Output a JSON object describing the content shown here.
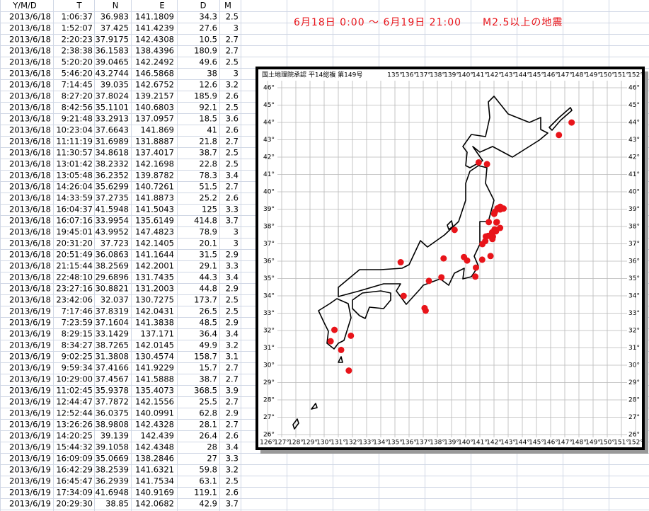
{
  "table": {
    "header": [
      "Y/M/D",
      "T",
      "N",
      "E",
      "D",
      "M"
    ],
    "rows": [
      [
        "2013/6/18",
        "1:06:37",
        36.983,
        141.1809,
        34.3,
        2.5
      ],
      [
        "2013/6/18",
        "1:52:07",
        37.425,
        141.4239,
        27.6,
        3
      ],
      [
        "2013/6/18",
        "2:20:23",
        37.9175,
        142.4308,
        10.5,
        2.7
      ],
      [
        "2013/6/18",
        "2:38:38",
        36.1583,
        138.4396,
        180.9,
        2.7
      ],
      [
        "2013/6/18",
        "5:20:20",
        39.0465,
        142.2492,
        49.6,
        2.5
      ],
      [
        "2013/6/18",
        "5:46:20",
        43.2744,
        146.5868,
        38,
        3
      ],
      [
        "2013/6/18",
        "7:14:45",
        39.035,
        142.6752,
        12.6,
        3.2
      ],
      [
        "2013/6/18",
        "8:27:20",
        37.8024,
        139.2157,
        185.9,
        2.6
      ],
      [
        "2013/6/18",
        "8:42:56",
        35.1101,
        140.6803,
        92.1,
        2.5
      ],
      [
        "2013/6/18",
        "9:21:48",
        33.2913,
        137.0957,
        18.5,
        3.6
      ],
      [
        "2013/6/18",
        "10:23:04",
        37.6643,
        141.869,
        41,
        2.6
      ],
      [
        "2013/6/18",
        "11:11:19",
        31.6989,
        131.8887,
        21.8,
        2.7
      ],
      [
        "2013/6/18",
        "11:30:57",
        34.8618,
        137.4017,
        38.7,
        2.5
      ],
      [
        "2013/6/18",
        "13:01:42",
        38.2332,
        142.1698,
        22.8,
        2.5
      ],
      [
        "2013/6/18",
        "13:05:48",
        36.2352,
        139.8782,
        78.3,
        3.4
      ],
      [
        "2013/6/18",
        "14:26:04",
        35.6299,
        140.7261,
        51.5,
        2.7
      ],
      [
        "2013/6/18",
        "14:33:59",
        37.2735,
        141.8873,
        25.2,
        2.6
      ],
      [
        "2013/6/18",
        "16:04:37",
        41.5948,
        141.5043,
        125,
        3.3
      ],
      [
        "2013/6/18",
        "16:07:16",
        33.9954,
        135.6149,
        414.8,
        3.7
      ],
      [
        "2013/6/18",
        "19:45:01",
        43.9952,
        147.4823,
        78.9,
        3
      ],
      [
        "2013/6/18",
        "20:31:20",
        37.723,
        142.1405,
        20.1,
        3
      ],
      [
        "2013/6/18",
        "20:51:49",
        36.0863,
        141.1644,
        31.5,
        2.9
      ],
      [
        "2013/6/18",
        "21:15:44",
        38.2569,
        142.2001,
        29.1,
        3.3
      ],
      [
        "2013/6/18",
        "22:48:10",
        29.6896,
        131.7435,
        44.3,
        3.4
      ],
      [
        "2013/6/18",
        "23:27:16",
        30.8821,
        131.2003,
        44.8,
        2.9
      ],
      [
        "2013/6/18",
        "23:42:06",
        32.037,
        130.7275,
        173.7,
        2.5
      ],
      [
        "2013/6/19",
        "7:17:46",
        37.8319,
        142.0431,
        26.5,
        2.5
      ],
      [
        "2013/6/19",
        "7:23:59",
        37.1604,
        141.3838,
        48.5,
        2.9
      ],
      [
        "2013/6/19",
        "8:29:15",
        33.1429,
        137.171,
        36.4,
        3.4
      ],
      [
        "2013/6/19",
        "8:34:27",
        38.7265,
        142.0145,
        49.9,
        3.2
      ],
      [
        "2013/6/19",
        "9:02:25",
        31.3808,
        130.4574,
        158.7,
        3.1
      ],
      [
        "2013/6/19",
        "9:59:34",
        37.4166,
        141.9229,
        15.7,
        2.7
      ],
      [
        "2013/6/19",
        "10:29:00",
        37.4567,
        141.5888,
        38.7,
        2.7
      ],
      [
        "2013/6/19",
        "11:02:45",
        35.9378,
        135.4073,
        368.5,
        3.9
      ],
      [
        "2013/6/19",
        "12:44:47",
        37.7872,
        142.1556,
        25.5,
        2.7
      ],
      [
        "2013/6/19",
        "12:52:44",
        36.0375,
        140.0991,
        62.8,
        2.9
      ],
      [
        "2013/6/19",
        "13:26:26",
        38.9808,
        142.4328,
        28.1,
        2.7
      ],
      [
        "2013/6/19",
        "14:20:25",
        39.139,
        142.439,
        26.4,
        2.6
      ],
      [
        "2013/6/19",
        "15:44:32",
        39.1058,
        142.4348,
        28,
        3.4
      ],
      [
        "2013/6/19",
        "16:09:09",
        35.0669,
        138.2846,
        27,
        3.3
      ],
      [
        "2013/6/19",
        "16:42:29",
        38.2539,
        141.6321,
        59.8,
        3.2
      ],
      [
        "2013/6/19",
        "16:45:47",
        36.2939,
        141.7534,
        63.1,
        2.5
      ],
      [
        "2013/6/19",
        "17:34:09",
        41.6948,
        140.9169,
        119.1,
        2.6
      ],
      [
        "2013/6/19",
        "20:29:30",
        38.85,
        142.0682,
        42.9,
        3.7
      ]
    ]
  },
  "map": {
    "title": "6月18日 0:00 ～ 6月19日 21:00　　M2.5以上の地震",
    "credit": "国土地理院承認 平14総複 第149号",
    "marker_color": "#e8141a",
    "xticks": [
      {
        "value": 126,
        "label": "126°"
      },
      {
        "value": 127,
        "label": "127°"
      },
      {
        "value": 128,
        "label": "128°"
      },
      {
        "value": 129,
        "label": "129°"
      },
      {
        "value": 130,
        "label": "130°"
      },
      {
        "value": 131,
        "label": "131°"
      },
      {
        "value": 132,
        "label": "132°"
      },
      {
        "value": 133,
        "label": "133°"
      },
      {
        "value": 134,
        "label": "134°"
      },
      {
        "value": 135,
        "label": "135°"
      },
      {
        "value": 136,
        "label": "136°"
      },
      {
        "value": 137,
        "label": "137°"
      },
      {
        "value": 138,
        "label": "138°"
      },
      {
        "value": 139,
        "label": "139°"
      },
      {
        "value": 140,
        "label": "140°"
      },
      {
        "value": 141,
        "label": "141°"
      },
      {
        "value": 142,
        "label": "142°"
      },
      {
        "value": 143,
        "label": "143°"
      },
      {
        "value": 144,
        "label": "144°"
      },
      {
        "value": 145,
        "label": "145°"
      },
      {
        "value": 146,
        "label": "146°"
      },
      {
        "value": 147,
        "label": "147°"
      },
      {
        "value": 148,
        "label": "148°"
      },
      {
        "value": 149,
        "label": "149°"
      },
      {
        "value": 150,
        "label": "150°"
      },
      {
        "value": 151,
        "label": "151°"
      },
      {
        "value": 152,
        "label": "152°"
      }
    ],
    "yticks": [
      {
        "value": 26,
        "label": "26°"
      },
      {
        "value": 27,
        "label": "27°"
      },
      {
        "value": 28,
        "label": "28°"
      },
      {
        "value": 29,
        "label": "29°"
      },
      {
        "value": 30,
        "label": "30°"
      },
      {
        "value": 31,
        "label": "31°"
      },
      {
        "value": 32,
        "label": "32°"
      },
      {
        "value": 33,
        "label": "33°"
      },
      {
        "value": 34,
        "label": "34°"
      },
      {
        "value": 35,
        "label": "35°"
      },
      {
        "value": 36,
        "label": "36°"
      },
      {
        "value": 37,
        "label": "37°"
      },
      {
        "value": 38,
        "label": "38°"
      },
      {
        "value": 39,
        "label": "39°"
      },
      {
        "value": 40,
        "label": "40°"
      },
      {
        "value": 41,
        "label": "41°"
      },
      {
        "value": 42,
        "label": "42°"
      },
      {
        "value": 43,
        "label": "43°"
      },
      {
        "value": 44,
        "label": "44°"
      },
      {
        "value": 45,
        "label": "45°"
      },
      {
        "value": 46,
        "label": "46°"
      }
    ]
  }
}
